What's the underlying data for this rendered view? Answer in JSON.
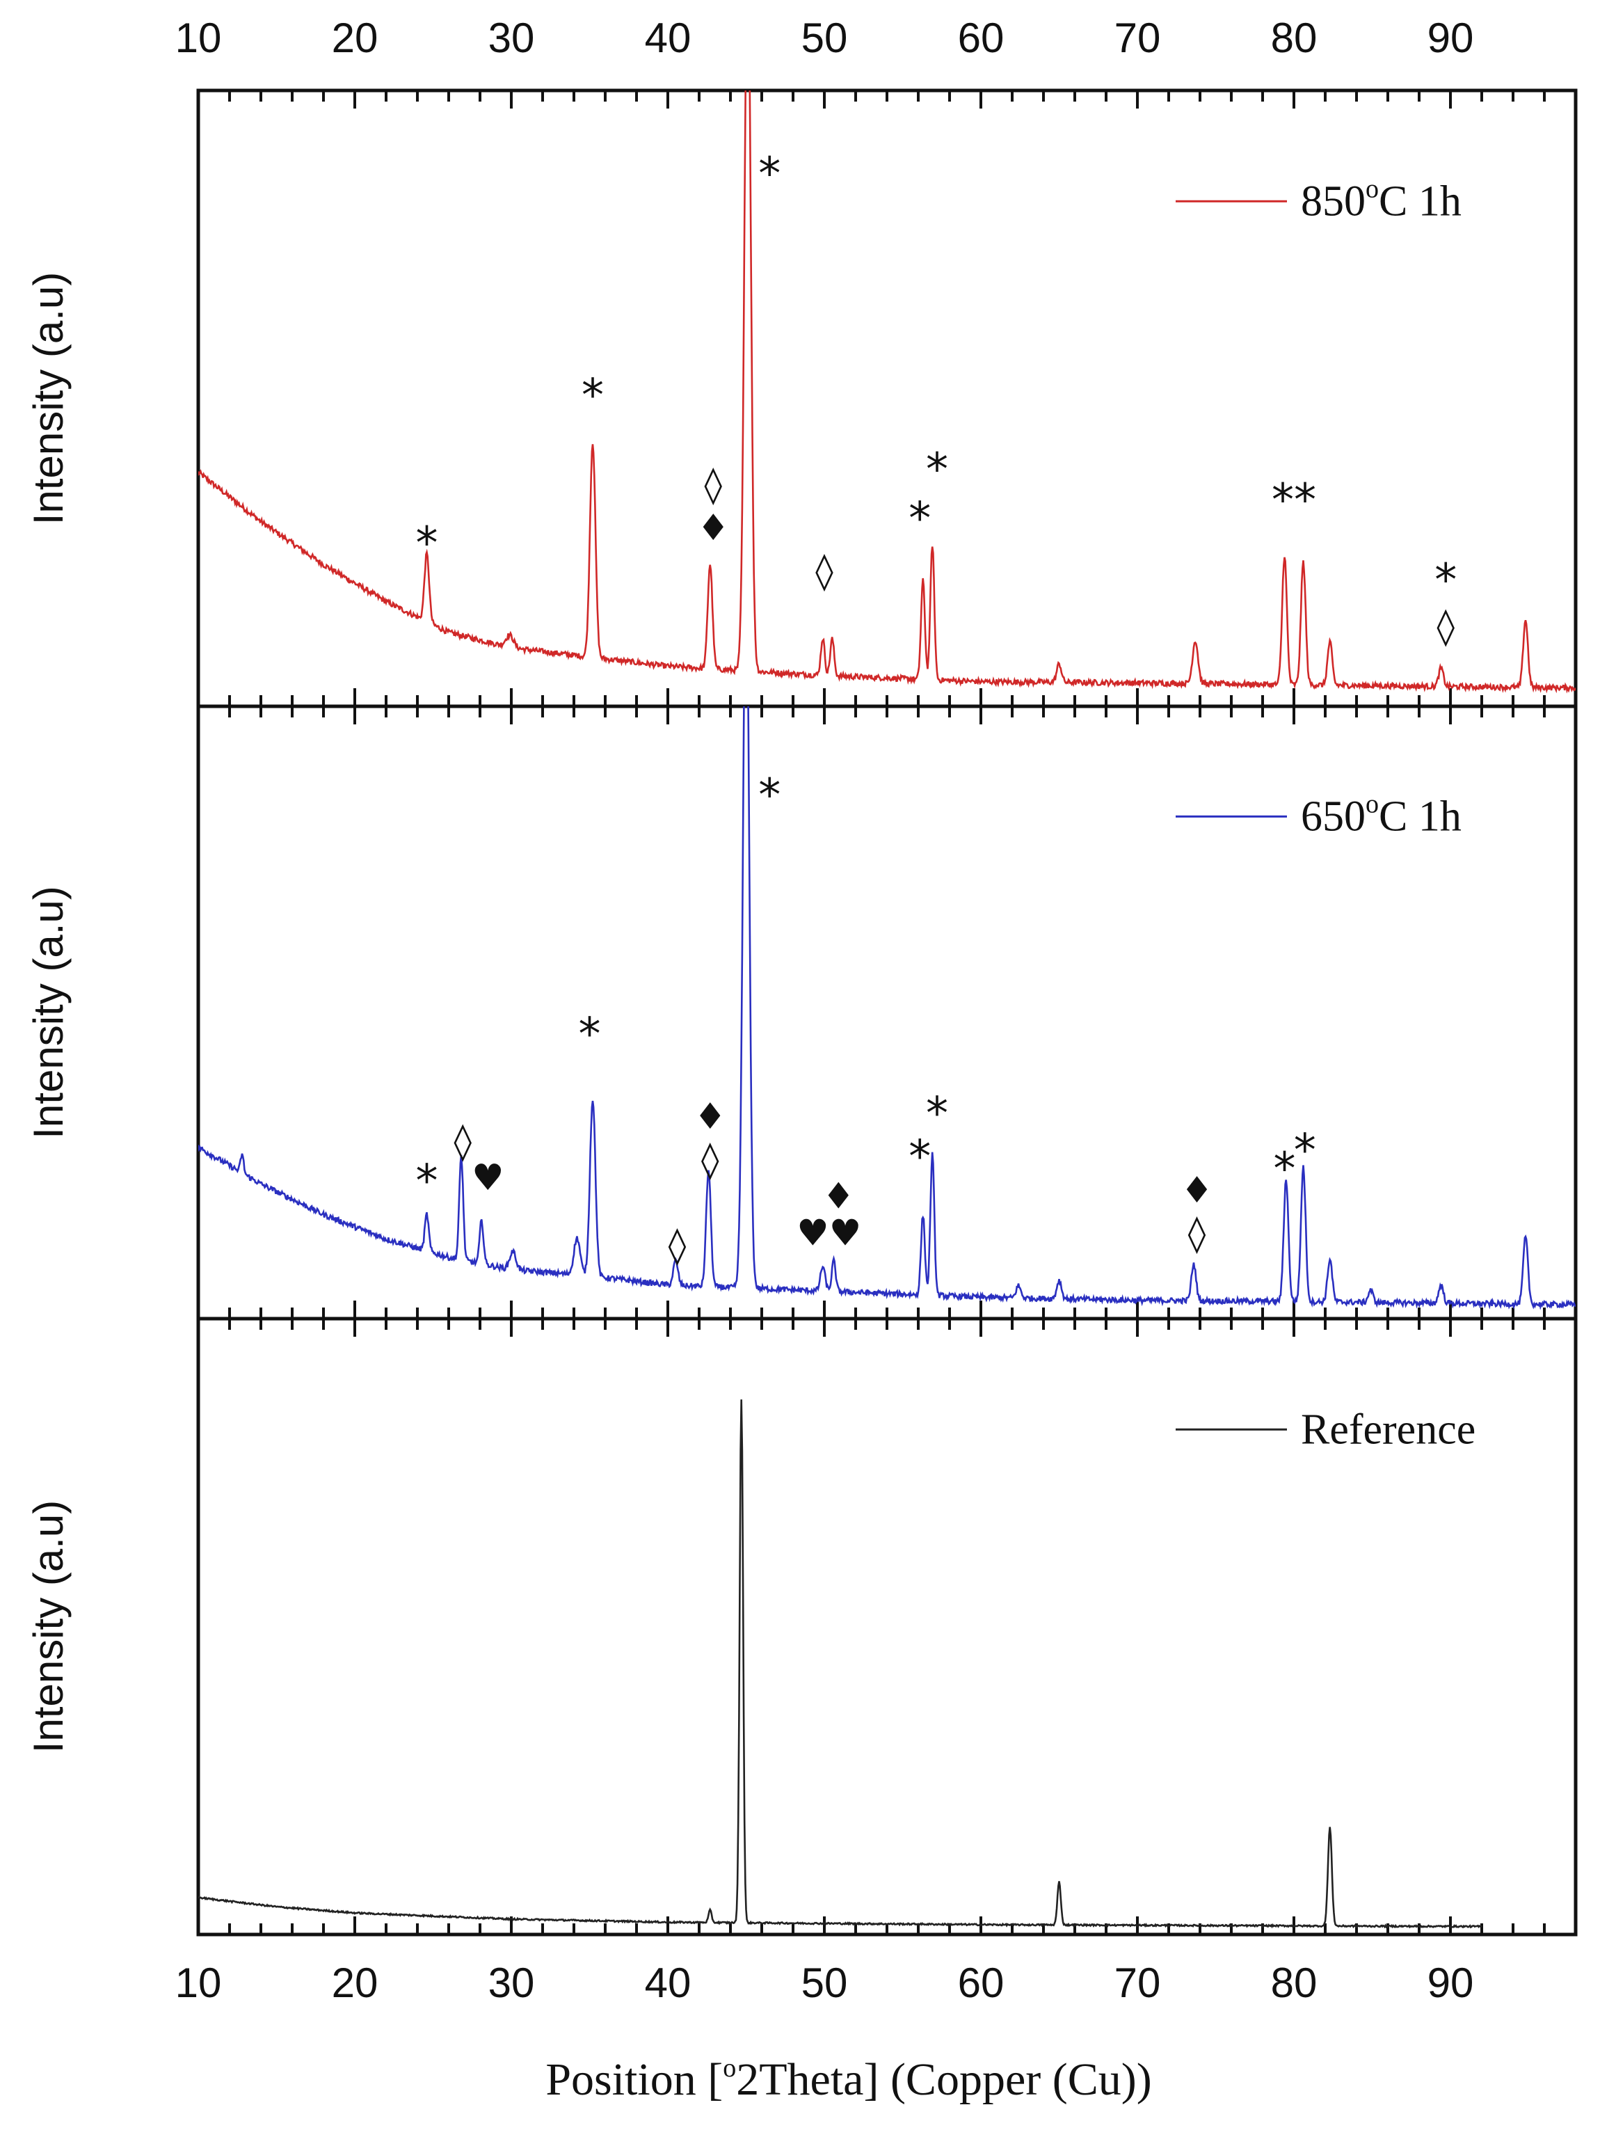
{
  "chart_data": {
    "type": "line",
    "title": "",
    "xlabel": "Position [°2Theta] (Copper (Cu))",
    "xlabel_parts": {
      "pre": "Position [",
      "sup": "o",
      "post": "2Theta] (Copper (Cu))"
    },
    "xlim": [
      10,
      98
    ],
    "x_ticks": [
      10,
      20,
      30,
      40,
      50,
      60,
      70,
      80,
      90
    ],
    "x_tick_labels": [
      "10",
      "20",
      "30",
      "40",
      "50",
      "60",
      "70",
      "80",
      "90"
    ],
    "legend_position": "top-right",
    "panels": [
      {
        "id": "850",
        "ylabel": "Intensity (a.u)",
        "series_name": "850°C 1h",
        "legend_parts": {
          "pre": "850",
          "sup": "o",
          "post": "C 1h"
        },
        "color": "#d02828",
        "ylim": [
          0,
          100
        ],
        "baseline_points": [
          [
            10,
            38
          ],
          [
            14,
            30
          ],
          [
            18,
            23
          ],
          [
            22,
            17
          ],
          [
            26,
            12
          ],
          [
            30,
            9.5
          ],
          [
            35,
            8
          ],
          [
            40,
            6.5
          ],
          [
            50,
            5
          ],
          [
            60,
            4
          ],
          [
            70,
            3.8
          ],
          [
            80,
            3.5
          ],
          [
            90,
            3.2
          ],
          [
            98,
            3
          ]
        ],
        "peaks": [
          [
            24.6,
            11,
            0.3
          ],
          [
            29.9,
            2,
            0.5
          ],
          [
            35.2,
            35,
            0.35
          ],
          [
            42.7,
            17,
            0.3
          ],
          [
            45.1,
            120,
            0.4
          ],
          [
            49.9,
            6,
            0.25
          ],
          [
            50.5,
            6,
            0.25
          ],
          [
            56.3,
            16,
            0.25
          ],
          [
            56.9,
            22,
            0.25
          ],
          [
            65.0,
            3,
            0.3
          ],
          [
            73.7,
            7,
            0.35
          ],
          [
            79.4,
            21,
            0.3
          ],
          [
            80.6,
            20,
            0.3
          ],
          [
            82.3,
            7,
            0.3
          ],
          [
            89.4,
            3,
            0.3
          ],
          [
            94.8,
            11,
            0.3
          ]
        ],
        "markers": [
          {
            "x": 24.6,
            "y": 24,
            "symbols": [
              "*"
            ]
          },
          {
            "x": 35.2,
            "y": 48,
            "symbols": [
              "*"
            ]
          },
          {
            "x": 42.9,
            "y": 34,
            "symbols": [
              "◊",
              "♦"
            ]
          },
          {
            "x": 46.5,
            "y": 84,
            "symbols": [
              "*"
            ]
          },
          {
            "x": 50.0,
            "y": 20,
            "symbols": [
              "◊"
            ]
          },
          {
            "x": 56.1,
            "y": 28,
            "symbols": [
              "*"
            ]
          },
          {
            "x": 57.2,
            "y": 36,
            "symbols": [
              "*"
            ]
          },
          {
            "x": 80.0,
            "y": 31,
            "symbols": [
              "**"
            ]
          },
          {
            "x": 89.7,
            "y": 18,
            "symbols": [
              "*",
              "◊"
            ]
          }
        ]
      },
      {
        "id": "650",
        "ylabel": "Intensity (a.u)",
        "series_name": "650°C 1h",
        "legend_parts": {
          "pre": "650",
          "sup": "o",
          "post": "C 1h"
        },
        "color": "#2a2fc0",
        "ylim": [
          0,
          100
        ],
        "baseline_points": [
          [
            10,
            28
          ],
          [
            14,
            22
          ],
          [
            18,
            17
          ],
          [
            22,
            13
          ],
          [
            26,
            10
          ],
          [
            30,
            8
          ],
          [
            35,
            7
          ],
          [
            40,
            5.5
          ],
          [
            50,
            4.5
          ],
          [
            60,
            3.5
          ],
          [
            70,
            3
          ],
          [
            80,
            2.8
          ],
          [
            90,
            2.5
          ],
          [
            98,
            2.3
          ]
        ],
        "peaks": [
          [
            12.8,
            3,
            0.2
          ],
          [
            24.6,
            6,
            0.25
          ],
          [
            26.8,
            17,
            0.25
          ],
          [
            28.1,
            7,
            0.25
          ],
          [
            30.1,
            3,
            0.4
          ],
          [
            34.2,
            6,
            0.4
          ],
          [
            35.2,
            29,
            0.35
          ],
          [
            40.5,
            4,
            0.3
          ],
          [
            42.6,
            19,
            0.3
          ],
          [
            45.0,
            120,
            0.4
          ],
          [
            49.9,
            4,
            0.3
          ],
          [
            50.6,
            5,
            0.25
          ],
          [
            56.3,
            13,
            0.25
          ],
          [
            56.9,
            23,
            0.25
          ],
          [
            62.4,
            2,
            0.3
          ],
          [
            65.0,
            3,
            0.3
          ],
          [
            73.6,
            6,
            0.3
          ],
          [
            79.5,
            20,
            0.3
          ],
          [
            80.6,
            22,
            0.3
          ],
          [
            82.3,
            7,
            0.3
          ],
          [
            84.9,
            2,
            0.3
          ],
          [
            89.4,
            3,
            0.3
          ],
          [
            94.8,
            11,
            0.3
          ]
        ],
        "markers": [
          {
            "x": 24.6,
            "y": 20,
            "symbols": [
              "*"
            ]
          },
          {
            "x": 26.9,
            "y": 27,
            "symbols": [
              "◊"
            ]
          },
          {
            "x": 28.5,
            "y": 21,
            "symbols": [
              "♥"
            ]
          },
          {
            "x": 35.0,
            "y": 44,
            "symbols": [
              "*"
            ]
          },
          {
            "x": 40.6,
            "y": 10,
            "symbols": [
              "◊"
            ]
          },
          {
            "x": 42.7,
            "y": 31,
            "symbols": [
              "♦",
              "◊"
            ]
          },
          {
            "x": 46.5,
            "y": 83,
            "symbols": [
              "*"
            ]
          },
          {
            "x": 50.3,
            "y": 12,
            "symbols": [
              "♥♥"
            ]
          },
          {
            "x": 50.9,
            "y": 18,
            "symbols": [
              "♦"
            ]
          },
          {
            "x": 56.1,
            "y": 24,
            "symbols": [
              "*"
            ]
          },
          {
            "x": 57.2,
            "y": 31,
            "symbols": [
              "*"
            ]
          },
          {
            "x": 73.8,
            "y": 19,
            "symbols": [
              "♦",
              "◊"
            ]
          },
          {
            "x": 79.4,
            "y": 22,
            "symbols": [
              "*"
            ]
          },
          {
            "x": 80.7,
            "y": 25,
            "symbols": [
              "*"
            ]
          }
        ]
      },
      {
        "id": "ref",
        "ylabel": "Intensity (a.u)",
        "series_name": "Reference",
        "legend_parts": {
          "pre": "Reference",
          "sup": "",
          "post": ""
        },
        "color": "#222222",
        "ylim": [
          0,
          100
        ],
        "x_end": 92,
        "baseline_points": [
          [
            10,
            6
          ],
          [
            15,
            4.5
          ],
          [
            20,
            3.5
          ],
          [
            25,
            3
          ],
          [
            30,
            2.5
          ],
          [
            40,
            2
          ],
          [
            50,
            1.8
          ],
          [
            60,
            1.6
          ],
          [
            70,
            1.5
          ],
          [
            80,
            1.4
          ],
          [
            92,
            1.3
          ]
        ],
        "peaks": [
          [
            42.7,
            2,
            0.2
          ],
          [
            44.7,
            85,
            0.22
          ],
          [
            65.0,
            7,
            0.22
          ],
          [
            82.3,
            16,
            0.25
          ]
        ],
        "markers": []
      }
    ]
  }
}
